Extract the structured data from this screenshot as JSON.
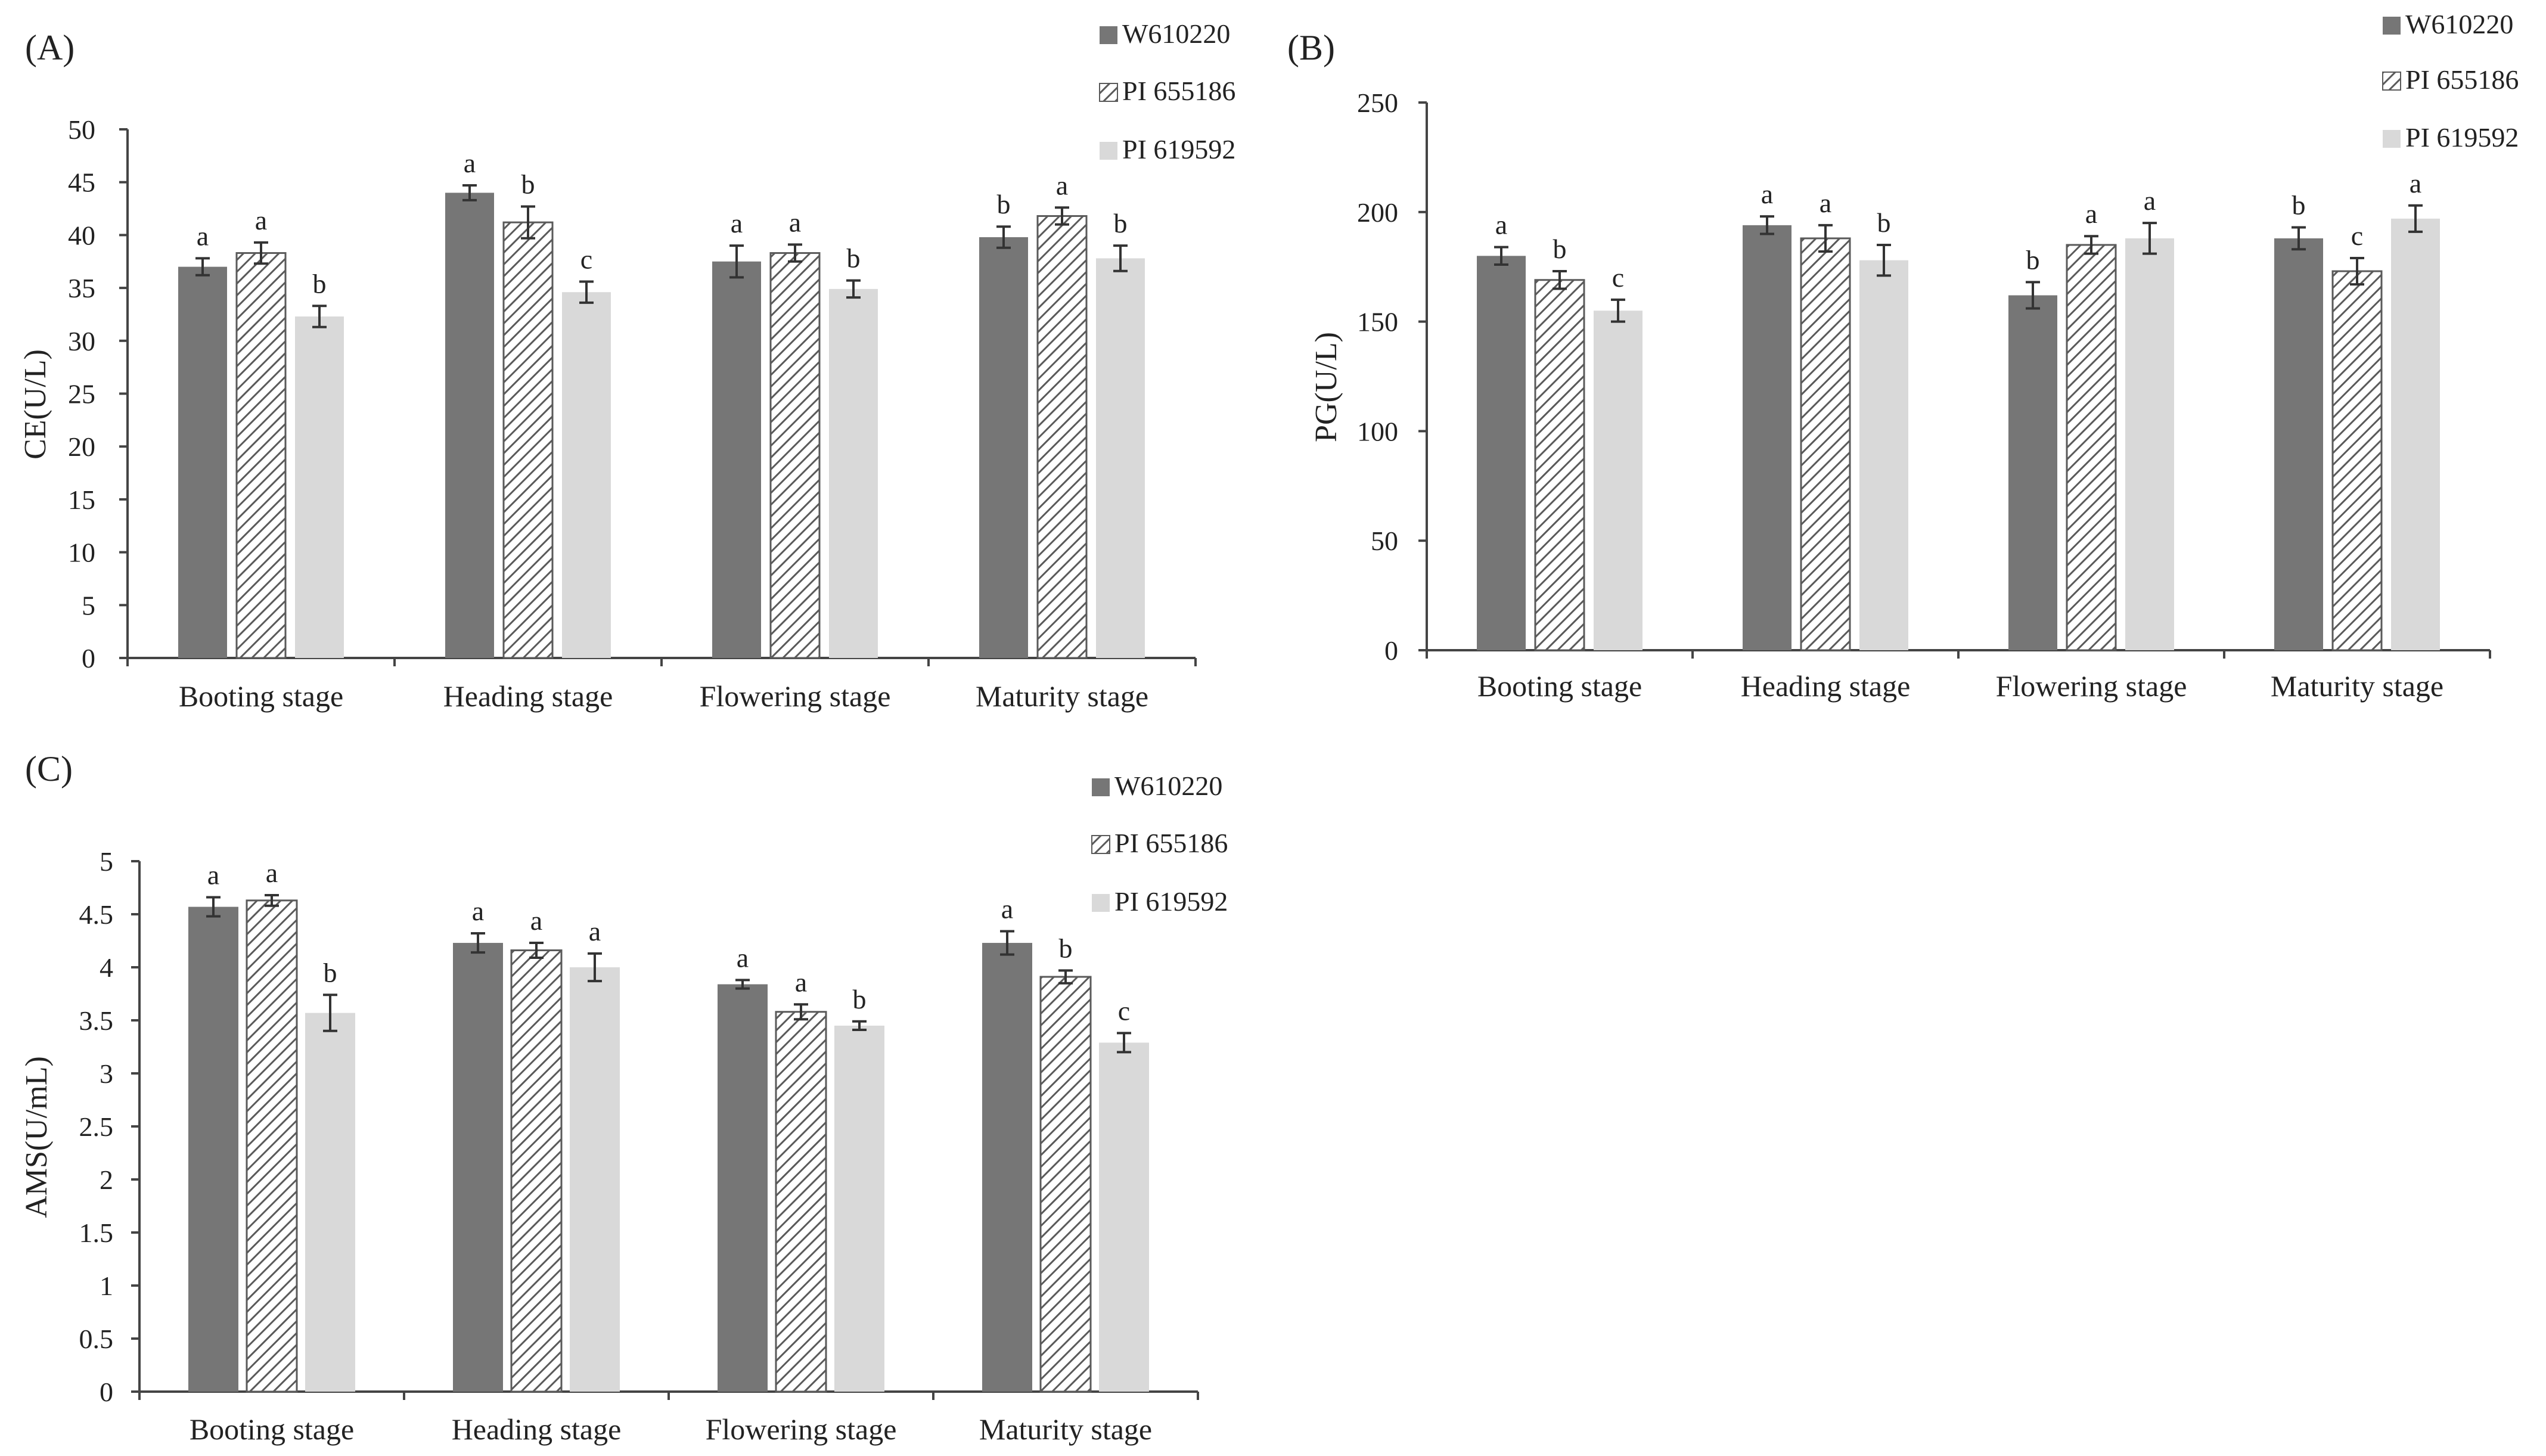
{
  "legend": [
    "W610220",
    "PI 655186",
    "PI 619592"
  ],
  "colors": {
    "W610220": "#767676",
    "PI 655186_stroke": "#5a5a5a",
    "PI 619592": "#d9d9d9",
    "axis": "#444444",
    "error": "#333333"
  },
  "chart_data": [
    {
      "type": "bar",
      "panel": "(A)",
      "ylabel": "CE(U/L)",
      "xlabel": "",
      "categories": [
        "Booting stage",
        "Heading stage",
        "Flowering stage",
        "Maturity stage"
      ],
      "ylim": [
        0,
        50
      ],
      "yticks": [
        "0",
        "5",
        "10",
        "15",
        "20",
        "25",
        "30",
        "35",
        "40",
        "45",
        "50"
      ],
      "series": [
        {
          "name": "W610220",
          "values": [
            37.0,
            44.0,
            37.5,
            39.8
          ],
          "errors": [
            0.8,
            0.7,
            1.5,
            1.0
          ],
          "letters": [
            "a",
            "a",
            "a",
            "b"
          ]
        },
        {
          "name": "PI 655186",
          "values": [
            38.3,
            41.2,
            38.3,
            41.8
          ],
          "errors": [
            1.0,
            1.5,
            0.8,
            0.8
          ],
          "letters": [
            "a",
            "b",
            "a",
            "a"
          ]
        },
        {
          "name": "PI 619592",
          "values": [
            32.3,
            34.6,
            34.9,
            37.8
          ],
          "errors": [
            1.0,
            1.0,
            0.8,
            1.2
          ],
          "letters": [
            "b",
            "c",
            "b",
            "b"
          ]
        }
      ],
      "legend_position": "top-right"
    },
    {
      "type": "bar",
      "panel": "(B)",
      "ylabel": "PG(U/L)",
      "xlabel": "",
      "categories": [
        "Booting stage",
        "Heading stage",
        "Flowering stage",
        "Maturity stage"
      ],
      "ylim": [
        0,
        250
      ],
      "yticks": [
        "0",
        "50",
        "100",
        "150",
        "200",
        "250"
      ],
      "series": [
        {
          "name": "W610220",
          "values": [
            180,
            194,
            162,
            188
          ],
          "errors": [
            4,
            4,
            6,
            5
          ],
          "letters": [
            "a",
            "a",
            "b",
            "b"
          ]
        },
        {
          "name": "PI 655186",
          "values": [
            169,
            188,
            185,
            173
          ],
          "errors": [
            4,
            6,
            4,
            6
          ],
          "letters": [
            "b",
            "a",
            "a",
            "c"
          ]
        },
        {
          "name": "PI 619592",
          "values": [
            155,
            178,
            188,
            197
          ],
          "errors": [
            5,
            7,
            7,
            6
          ],
          "letters": [
            "c",
            "b",
            "a",
            "a"
          ]
        }
      ],
      "legend_position": "top-right"
    },
    {
      "type": "bar",
      "panel": "(C)",
      "ylabel": "AMS(U/mL)",
      "xlabel": "",
      "categories": [
        "Booting stage",
        "Heading stage",
        "Flowering stage",
        "Maturity stage"
      ],
      "ylim": [
        0,
        5
      ],
      "yticks": [
        "0",
        "0.5",
        "1",
        "1.5",
        "2",
        "2.5",
        "3",
        "3.5",
        "4",
        "4.5",
        "5"
      ],
      "series": [
        {
          "name": "W610220",
          "values": [
            4.57,
            4.23,
            3.84,
            4.23
          ],
          "errors": [
            0.09,
            0.09,
            0.04,
            0.11
          ],
          "letters": [
            "a",
            "a",
            "a",
            "a"
          ]
        },
        {
          "name": "PI 655186",
          "values": [
            4.63,
            4.16,
            3.58,
            3.91
          ],
          "errors": [
            0.05,
            0.07,
            0.07,
            0.06
          ],
          "letters": [
            "a",
            "a",
            "a",
            "b"
          ]
        },
        {
          "name": "PI 619592",
          "values": [
            3.57,
            4.0,
            3.45,
            3.29
          ],
          "errors": [
            0.17,
            0.13,
            0.04,
            0.09
          ],
          "letters": [
            "b",
            "a",
            "b",
            "c"
          ]
        }
      ],
      "legend_position": "top-right"
    }
  ]
}
